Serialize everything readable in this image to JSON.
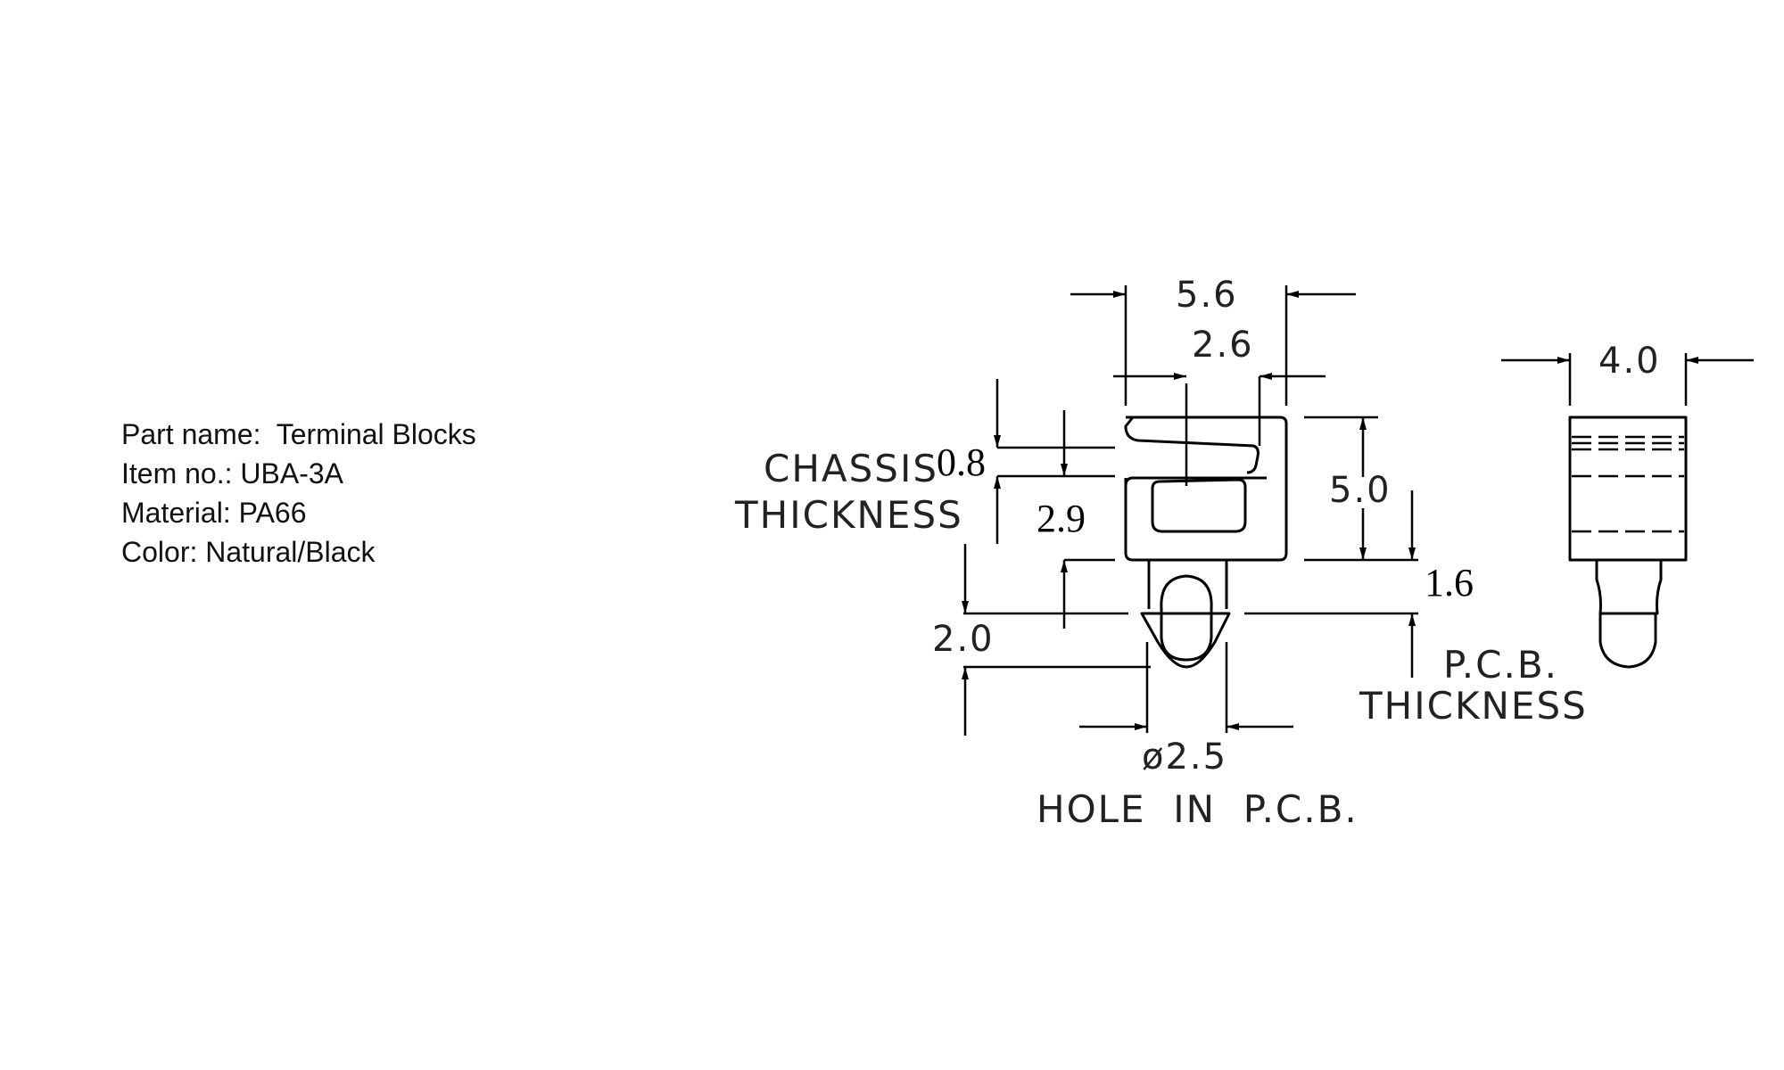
{
  "part_info": {
    "part_name": "Part name:  Terminal Blocks",
    "item_no": "Item no.: UBA-3A",
    "material": "Material: PA66",
    "color": "Color: Natural/Black"
  },
  "dimensions": {
    "width_total": "5.6",
    "slot_width": "2.6",
    "side_width": "4.0",
    "chassis_thickness": "0.8",
    "slot_depth": "2.9",
    "height": "5.0",
    "pcb_thickness": "1.6",
    "peg_length": "2.0",
    "hole_diameter": "ø2.5"
  },
  "labels": {
    "chassis_line1": "CHASSIS",
    "chassis_line2": "THICKNESS",
    "pcb_line1": "P.C.B.",
    "pcb_line2": "THICKNESS",
    "hole_note": "HOLE  IN  P.C.B."
  }
}
